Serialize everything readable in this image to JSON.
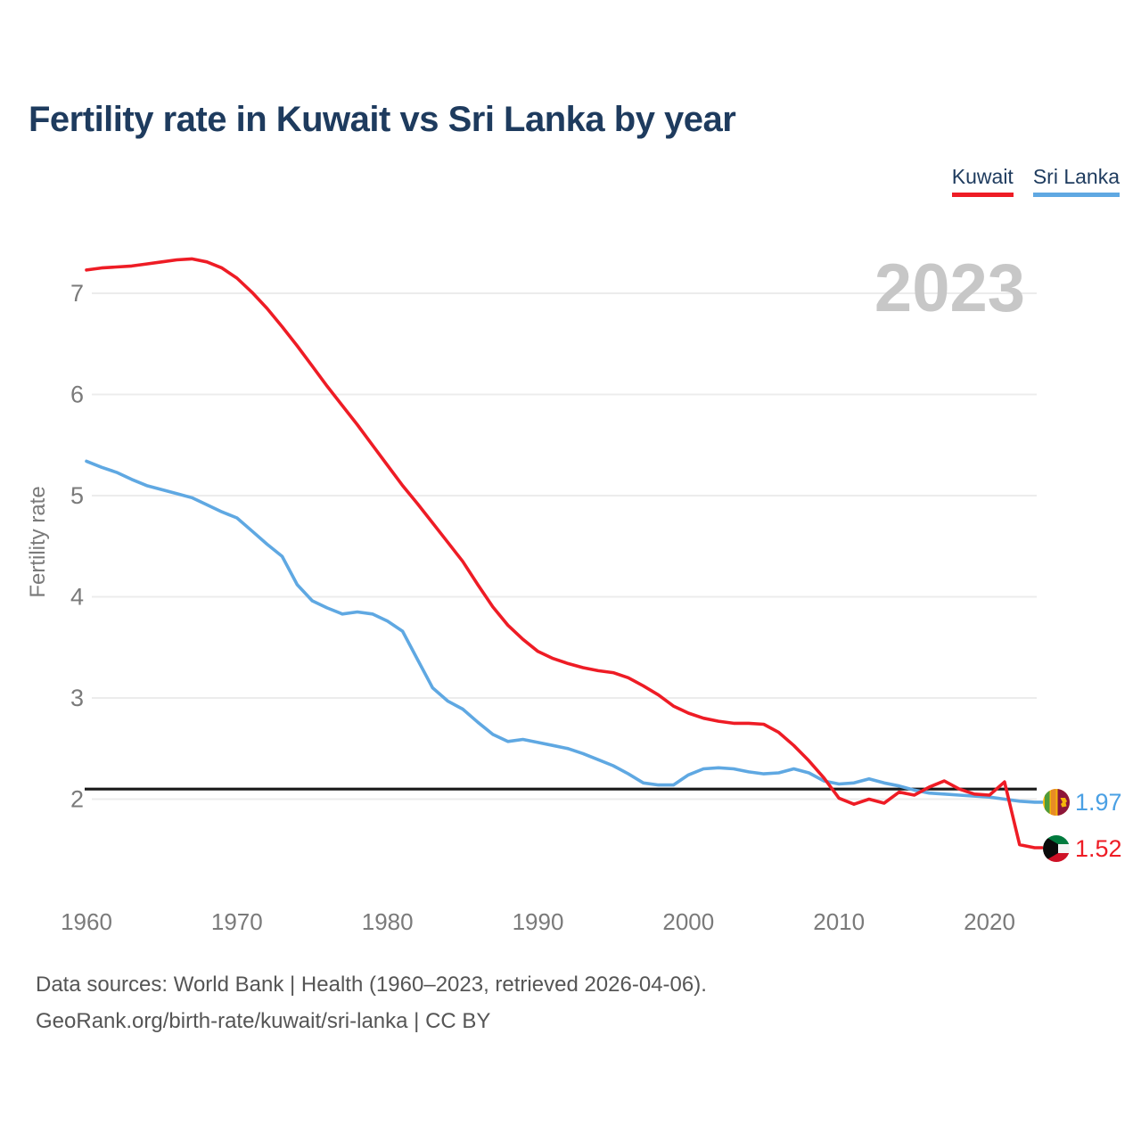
{
  "header": {
    "title": "Fertility rate in Kuwait vs Sri Lanka by year"
  },
  "legend": {
    "items": [
      {
        "label": "Kuwait",
        "color": "#ee1c25"
      },
      {
        "label": "Sri Lanka",
        "color": "#5fa8e2"
      }
    ]
  },
  "footer": {
    "line1": "Data sources: World Bank | Health (1960–2023, retrieved 2026-04-06).",
    "line2": "GeoRank.org/birth-rate/kuwait/sri-lanka | CC BY"
  },
  "colors": {
    "kuwait": "#ee1c25",
    "sri_lanka": "#5fa8e2",
    "replacement_line": "#191919",
    "grid": "#ececec",
    "watermark": "#c7c7c7",
    "title": "#1e3b5e",
    "axis_text": "#7a7a7a",
    "footer_text": "#555555"
  },
  "chart_data": {
    "type": "line",
    "title": "Fertility rate in Kuwait vs Sri Lanka by year",
    "xlabel": "",
    "ylabel": "Fertility rate",
    "watermark": "2023",
    "grid": "horizontal",
    "legend_position": "top-right",
    "x_range": [
      1960,
      2023
    ],
    "ylim": [
      1.4,
      7.6
    ],
    "yticks": [
      2,
      3,
      4,
      5,
      6,
      7
    ],
    "xticks": [
      1960,
      1970,
      1980,
      1990,
      2000,
      2010,
      2020
    ],
    "replacement_line": {
      "value": 2.1
    },
    "years": [
      1960,
      1961,
      1962,
      1963,
      1964,
      1965,
      1966,
      1967,
      1968,
      1969,
      1970,
      1971,
      1972,
      1973,
      1974,
      1975,
      1976,
      1977,
      1978,
      1979,
      1980,
      1981,
      1982,
      1983,
      1984,
      1985,
      1986,
      1987,
      1988,
      1989,
      1990,
      1991,
      1992,
      1993,
      1994,
      1995,
      1996,
      1997,
      1998,
      1999,
      2000,
      2001,
      2002,
      2003,
      2004,
      2005,
      2006,
      2007,
      2008,
      2009,
      2010,
      2011,
      2012,
      2013,
      2014,
      2015,
      2016,
      2017,
      2018,
      2019,
      2020,
      2021,
      2022,
      2023
    ],
    "series": [
      {
        "name": "Kuwait",
        "color": "#ee1c25",
        "values": [
          7.23,
          7.25,
          7.26,
          7.27,
          7.29,
          7.31,
          7.33,
          7.34,
          7.31,
          7.25,
          7.15,
          7.01,
          6.85,
          6.67,
          6.48,
          6.28,
          6.08,
          5.89,
          5.7,
          5.5,
          5.3,
          5.1,
          4.92,
          4.73,
          4.54,
          4.35,
          4.12,
          3.9,
          3.72,
          3.58,
          3.46,
          3.39,
          3.34,
          3.3,
          3.27,
          3.25,
          3.2,
          3.12,
          3.03,
          2.92,
          2.85,
          2.8,
          2.77,
          2.75,
          2.75,
          2.74,
          2.66,
          2.53,
          2.38,
          2.21,
          2.01,
          1.95,
          2.0,
          1.96,
          2.07,
          2.04,
          2.12,
          2.18,
          2.1,
          2.05,
          2.04,
          2.17,
          1.55,
          1.52
        ]
      },
      {
        "name": "Sri Lanka",
        "color": "#5fa8e2",
        "values": [
          5.34,
          5.28,
          5.23,
          5.16,
          5.1,
          5.06,
          5.02,
          4.98,
          4.91,
          4.84,
          4.78,
          4.65,
          4.52,
          4.4,
          4.12,
          3.96,
          3.89,
          3.83,
          3.85,
          3.83,
          3.76,
          3.66,
          3.38,
          3.1,
          2.97,
          2.89,
          2.76,
          2.64,
          2.57,
          2.59,
          2.56,
          2.53,
          2.5,
          2.45,
          2.39,
          2.33,
          2.25,
          2.16,
          2.14,
          2.14,
          2.24,
          2.3,
          2.31,
          2.3,
          2.27,
          2.25,
          2.26,
          2.3,
          2.26,
          2.18,
          2.15,
          2.16,
          2.2,
          2.16,
          2.13,
          2.09,
          2.06,
          2.05,
          2.04,
          2.03,
          2.02,
          2.0,
          1.98,
          1.97
        ]
      }
    ],
    "end_labels": [
      {
        "series": "Sri Lanka",
        "value": "1.97",
        "flag": "sri-lanka-flag",
        "color": "#4aa0e4"
      },
      {
        "series": "Kuwait",
        "value": "1.52",
        "flag": "kuwait-flag",
        "color": "#ee1c25"
      }
    ]
  }
}
